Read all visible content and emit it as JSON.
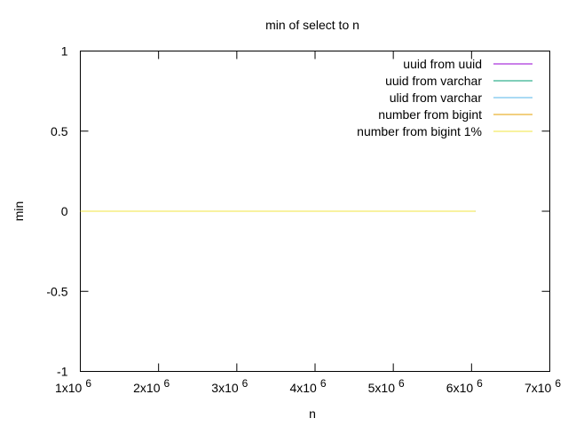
{
  "chart_data": {
    "type": "line",
    "title": "min of select to n",
    "xlabel": "n",
    "ylabel": "min",
    "xlim": [
      1000000,
      7000000
    ],
    "ylim": [
      -1,
      1
    ],
    "x_ticks": [
      {
        "value": 1000000,
        "mantissa": "1x10",
        "exp": "6"
      },
      {
        "value": 2000000,
        "mantissa": "2x10",
        "exp": "6"
      },
      {
        "value": 3000000,
        "mantissa": "3x10",
        "exp": "6"
      },
      {
        "value": 4000000,
        "mantissa": "4x10",
        "exp": "6"
      },
      {
        "value": 5000000,
        "mantissa": "5x10",
        "exp": "6"
      },
      {
        "value": 6000000,
        "mantissa": "6x10",
        "exp": "6"
      },
      {
        "value": 7000000,
        "mantissa": "7x10",
        "exp": "6"
      }
    ],
    "y_ticks": [
      {
        "value": 1,
        "label": "1"
      },
      {
        "value": 0.5,
        "label": "0.5"
      },
      {
        "value": 0,
        "label": "0"
      },
      {
        "value": -0.5,
        "label": "-0.5"
      },
      {
        "value": -1,
        "label": "-1"
      }
    ],
    "grid": false,
    "legend_position": "top-right",
    "series": [
      {
        "name": "uuid from uuid",
        "color": "#9400d3",
        "x": [
          1000000,
          6050000
        ],
        "y": [
          0,
          0
        ]
      },
      {
        "name": "uuid from varchar",
        "color": "#009e73",
        "x": [
          1000000,
          6050000
        ],
        "y": [
          0,
          0
        ]
      },
      {
        "name": "ulid from varchar",
        "color": "#56b4e9",
        "x": [
          1000000,
          6050000
        ],
        "y": [
          0,
          0
        ]
      },
      {
        "name": "number from bigint",
        "color": "#e69f00",
        "x": [
          1000000,
          6050000
        ],
        "y": [
          0,
          0
        ]
      },
      {
        "name": "number from bigint 1%",
        "color": "#f0e442",
        "x": [
          1000000,
          6050000
        ],
        "y": [
          0,
          0
        ]
      }
    ]
  }
}
